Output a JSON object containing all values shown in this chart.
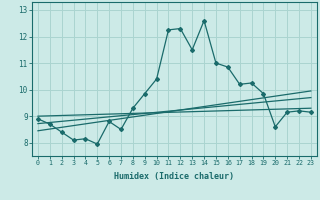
{
  "xlabel": "Humidex (Indice chaleur)",
  "bg_color": "#cceae7",
  "grid_color": "#aad4d0",
  "line_color": "#1a6b6b",
  "xlim": [
    -0.5,
    23.5
  ],
  "ylim": [
    7.5,
    13.3
  ],
  "yticks": [
    8,
    9,
    10,
    11,
    12,
    13
  ],
  "xticks": [
    0,
    1,
    2,
    3,
    4,
    5,
    6,
    7,
    8,
    9,
    10,
    11,
    12,
    13,
    14,
    15,
    16,
    17,
    18,
    19,
    20,
    21,
    22,
    23
  ],
  "main_x": [
    0,
    1,
    2,
    3,
    4,
    5,
    6,
    7,
    8,
    9,
    10,
    11,
    12,
    13,
    14,
    15,
    16,
    17,
    18,
    19,
    20,
    21,
    22,
    23
  ],
  "main_y": [
    8.9,
    8.7,
    8.4,
    8.1,
    8.15,
    7.95,
    8.8,
    8.5,
    9.3,
    9.85,
    10.4,
    12.25,
    12.3,
    11.5,
    12.6,
    11.0,
    10.85,
    10.2,
    10.25,
    9.85,
    8.6,
    9.15,
    9.2,
    9.15
  ],
  "trend1_x": [
    0,
    23
  ],
  "trend1_y": [
    9.0,
    9.3
  ],
  "trend2_x": [
    0,
    23
  ],
  "trend2_y": [
    8.72,
    9.7
  ],
  "trend3_x": [
    0,
    23
  ],
  "trend3_y": [
    8.45,
    9.95
  ]
}
